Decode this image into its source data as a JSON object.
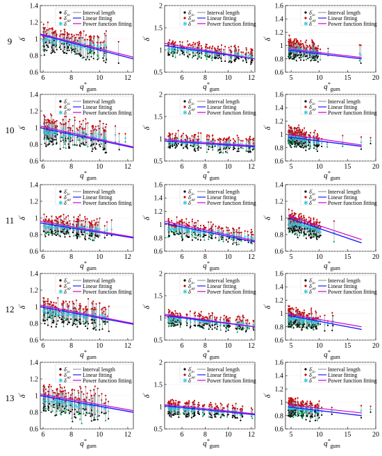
{
  "figure": {
    "row_labels": [
      "9",
      "10",
      "11",
      "12",
      "13"
    ],
    "legend": {
      "entries": [
        {
          "symbol_base": "δ",
          "sup": "′",
          "sub": "lo",
          "marker": "dot",
          "color": "#000000"
        },
        {
          "symbol_base": "δ",
          "sup": "′",
          "sub": "up",
          "marker": "dot",
          "color": "#cc0000"
        },
        {
          "symbol_base": "δ",
          "sup": "′",
          "sub": "",
          "marker": "star",
          "color": "#33ccdd"
        }
      ],
      "lines": [
        {
          "label": "Interval length",
          "color": "#9999aa"
        },
        {
          "label": "Linear fitting",
          "color": "#1a1aff"
        },
        {
          "label": "Power function fitting",
          "color": "#cc00cc"
        }
      ]
    },
    "axis_labels": {
      "x_base": "q",
      "x_sup": "*",
      "x_sub": "gum",
      "y_base": "δ",
      "y_sup": "′"
    },
    "colors": {
      "lo": "#000000",
      "up": "#cc0000",
      "mid": "#33ccdd",
      "green": "#00aa55",
      "interval": "#666677",
      "linear": "#1a1aff",
      "power": "#cc00cc",
      "pink": "#ff99cc"
    }
  },
  "chart_data": [
    {
      "type": "scatter",
      "row": "9",
      "col": 1,
      "xlim": [
        5.8,
        12.4
      ],
      "ylim": [
        0.6,
        1.4
      ],
      "xticks": [
        6,
        8,
        10,
        12
      ],
      "yticks": [
        0.6,
        0.8,
        1,
        1.2,
        1.4
      ],
      "cloud": {
        "x": [
          6,
          10.5
        ],
        "y_center": [
          1.0,
          0.87
        ],
        "spread": 0.09
      },
      "linear": {
        "x": [
          5.8,
          12.4
        ],
        "y": [
          1.05,
          0.76
        ]
      },
      "power": {
        "x": [
          5.8,
          12.4
        ],
        "y": [
          1.06,
          0.78
        ]
      }
    },
    {
      "type": "scatter",
      "row": "9",
      "col": 2,
      "xlim": [
        4.5,
        12.3
      ],
      "ylim": [
        0.5,
        2
      ],
      "xticks": [
        6,
        8,
        10,
        12
      ],
      "yticks": [
        0.5,
        1,
        1.5,
        2
      ],
      "cloud": {
        "x": [
          4.8,
          12.2
        ],
        "y_center": [
          1.05,
          0.85
        ],
        "spread": 0.1
      },
      "linear": {
        "x": [
          4.5,
          12.3
        ],
        "y": [
          1.1,
          0.8
        ]
      },
      "power": {
        "x": [
          4.5,
          12.3
        ],
        "y": [
          1.15,
          0.8
        ]
      }
    },
    {
      "type": "scatter",
      "row": "9",
      "col": 3,
      "xlim": [
        4,
        20
      ],
      "ylim": [
        0.6,
        1.6
      ],
      "xticks": [
        5,
        10,
        15,
        20
      ],
      "yticks": [
        0.6,
        0.8,
        1,
        1.2,
        1.4,
        1.6
      ],
      "cloud": {
        "x": [
          4.5,
          10
        ],
        "y_center": [
          0.95,
          0.88
        ],
        "spread": 0.08
      },
      "linear": {
        "x": [
          4.5,
          17.5
        ],
        "y": [
          0.93,
          0.8
        ]
      },
      "power": {
        "x": [
          4.5,
          17.5
        ],
        "y": [
          0.95,
          0.82
        ]
      }
    },
    {
      "type": "scatter",
      "row": "10",
      "col": 1,
      "xlim": [
        5.8,
        12.4
      ],
      "ylim": [
        0.6,
        1.4
      ],
      "xticks": [
        6,
        8,
        10,
        12
      ],
      "yticks": [
        0.6,
        0.8,
        1,
        1.2,
        1.4
      ],
      "cloud": {
        "x": [
          6,
          10.5
        ],
        "y_center": [
          0.97,
          0.86
        ],
        "spread": 0.1
      },
      "linear": {
        "x": [
          5.8,
          12.4
        ],
        "y": [
          1.0,
          0.76
        ]
      },
      "power": {
        "x": [
          5.8,
          12.4
        ],
        "y": [
          1.02,
          0.77
        ]
      }
    },
    {
      "type": "scatter",
      "row": "10",
      "col": 2,
      "xlim": [
        4.5,
        12.3
      ],
      "ylim": [
        0.5,
        2
      ],
      "xticks": [
        6,
        8,
        10,
        12
      ],
      "yticks": [
        0.5,
        1,
        1.5,
        2
      ],
      "cloud": {
        "x": [
          4.8,
          12.2
        ],
        "y_center": [
          0.95,
          0.85
        ],
        "spread": 0.1
      },
      "linear": {
        "x": [
          4.5,
          12.3
        ],
        "y": [
          0.95,
          0.82
        ]
      },
      "power": {
        "x": [
          4.5,
          12.3
        ],
        "y": [
          0.98,
          0.84
        ]
      }
    },
    {
      "type": "scatter",
      "row": "10",
      "col": 3,
      "xlim": [
        4,
        20
      ],
      "ylim": [
        0.6,
        1.6
      ],
      "xticks": [
        5,
        10,
        15,
        20
      ],
      "yticks": [
        0.6,
        0.8,
        1,
        1.2,
        1.4,
        1.6
      ],
      "cloud": {
        "x": [
          4.5,
          10
        ],
        "y_center": [
          0.97,
          0.88
        ],
        "spread": 0.08
      },
      "linear": {
        "x": [
          4.5,
          17.5
        ],
        "y": [
          0.96,
          0.82
        ]
      },
      "power": {
        "x": [
          4.5,
          17.5
        ],
        "y": [
          1.0,
          0.84
        ]
      }
    },
    {
      "type": "scatter",
      "row": "11",
      "col": 1,
      "xlim": [
        5.8,
        12.4
      ],
      "ylim": [
        0.6,
        1.4
      ],
      "xticks": [
        6,
        8,
        10,
        12
      ],
      "yticks": [
        0.6,
        0.8,
        1,
        1.2,
        1.4
      ],
      "cloud": {
        "x": [
          6,
          10.5
        ],
        "y_center": [
          0.9,
          0.85
        ],
        "spread": 0.07
      },
      "linear": {
        "x": [
          5.8,
          12.4
        ],
        "y": [
          0.94,
          0.76
        ]
      },
      "power": {
        "x": [
          5.8,
          12.4
        ],
        "y": [
          0.96,
          0.77
        ]
      }
    },
    {
      "type": "scatter",
      "row": "11",
      "col": 2,
      "xlim": [
        4.5,
        12.3
      ],
      "ylim": [
        0.6,
        1.6
      ],
      "xticks": [
        6,
        8,
        10,
        12
      ],
      "yticks": [
        0.6,
        0.8,
        1,
        1.2,
        1.4,
        1.6
      ],
      "cloud": {
        "x": [
          4.8,
          12.2
        ],
        "y_center": [
          0.95,
          0.8
        ],
        "spread": 0.08
      },
      "linear": {
        "x": [
          4.5,
          12.3
        ],
        "y": [
          1.02,
          0.74
        ]
      },
      "power": {
        "x": [
          4.5,
          12.3
        ],
        "y": [
          1.05,
          0.76
        ]
      }
    },
    {
      "type": "scatter",
      "row": "11",
      "col": 3,
      "xlim": [
        4,
        20
      ],
      "ylim": [
        0.6,
        1.4
      ],
      "xticks": [
        5,
        10,
        15,
        20
      ],
      "yticks": [
        0.6,
        0.8,
        1,
        1.2,
        1.4
      ],
      "cloud": {
        "x": [
          4.5,
          10
        ],
        "y_center": [
          0.95,
          0.85
        ],
        "spread": 0.07
      },
      "linear": {
        "x": [
          4.5,
          17.5
        ],
        "y": [
          1.0,
          0.7
        ]
      },
      "power": {
        "x": [
          4.5,
          17.5
        ],
        "y": [
          1.03,
          0.74
        ]
      }
    },
    {
      "type": "scatter",
      "row": "12",
      "col": 1,
      "xlim": [
        5.8,
        12.4
      ],
      "ylim": [
        0.6,
        1.4
      ],
      "xticks": [
        6,
        8,
        10,
        12
      ],
      "yticks": [
        0.6,
        0.8,
        1,
        1.2,
        1.4
      ],
      "cloud": {
        "x": [
          6,
          10.5
        ],
        "y_center": [
          0.95,
          0.86
        ],
        "spread": 0.09
      },
      "linear": {
        "x": [
          5.8,
          12.4
        ],
        "y": [
          1.0,
          0.79
        ]
      },
      "power": {
        "x": [
          5.8,
          12.4
        ],
        "y": [
          1.02,
          0.8
        ]
      }
    },
    {
      "type": "scatter",
      "row": "12",
      "col": 2,
      "xlim": [
        4.5,
        12.3
      ],
      "ylim": [
        0.5,
        2
      ],
      "xticks": [
        6,
        8,
        10,
        12
      ],
      "yticks": [
        0.5,
        1,
        1.5,
        2
      ],
      "cloud": {
        "x": [
          4.8,
          12.2
        ],
        "y_center": [
          0.98,
          0.84
        ],
        "spread": 0.1
      },
      "linear": {
        "x": [
          4.5,
          12.3
        ],
        "y": [
          1.05,
          0.8
        ]
      },
      "power": {
        "x": [
          4.5,
          12.3
        ],
        "y": [
          1.08,
          0.8
        ]
      }
    },
    {
      "type": "scatter",
      "row": "12",
      "col": 3,
      "xlim": [
        4,
        20
      ],
      "ylim": [
        0.6,
        1.6
      ],
      "xticks": [
        5,
        10,
        15,
        20
      ],
      "yticks": [
        0.6,
        0.8,
        1,
        1.2,
        1.4,
        1.6
      ],
      "cloud": {
        "x": [
          4.5,
          10
        ],
        "y_center": [
          0.93,
          0.86
        ],
        "spread": 0.08
      },
      "linear": {
        "x": [
          4.5,
          17.5
        ],
        "y": [
          0.97,
          0.76
        ]
      },
      "power": {
        "x": [
          4.5,
          17.5
        ],
        "y": [
          0.99,
          0.8
        ]
      }
    },
    {
      "type": "scatter",
      "row": "13",
      "col": 1,
      "xlim": [
        5.8,
        12.4
      ],
      "ylim": [
        0.6,
        1.4
      ],
      "xticks": [
        6,
        8,
        10,
        12
      ],
      "yticks": [
        0.6,
        0.8,
        1,
        1.2,
        1.4
      ],
      "cloud": {
        "x": [
          6,
          10.5
        ],
        "y_center": [
          0.95,
          0.85
        ],
        "spread": 0.1
      },
      "linear": {
        "x": [
          5.8,
          12.4
        ],
        "y": [
          1.0,
          0.8
        ]
      },
      "power": {
        "x": [
          5.8,
          12.4
        ],
        "y": [
          1.02,
          0.82
        ]
      }
    },
    {
      "type": "scatter",
      "row": "13",
      "col": 2,
      "xlim": [
        4.5,
        12.3
      ],
      "ylim": [
        0.5,
        2
      ],
      "xticks": [
        6,
        8,
        10,
        12
      ],
      "yticks": [
        0.5,
        1,
        1.5,
        2
      ],
      "cloud": {
        "x": [
          4.8,
          12.2
        ],
        "y_center": [
          0.97,
          0.85
        ],
        "spread": 0.1
      },
      "linear": {
        "x": [
          4.5,
          12.3
        ],
        "y": [
          1.02,
          0.82
        ]
      },
      "power": {
        "x": [
          4.5,
          12.3
        ],
        "y": [
          1.05,
          0.84
        ]
      }
    },
    {
      "type": "scatter",
      "row": "13",
      "col": 3,
      "xlim": [
        4,
        20
      ],
      "ylim": [
        0.6,
        1.6
      ],
      "xticks": [
        5,
        10,
        15,
        20
      ],
      "yticks": [
        0.6,
        0.8,
        1,
        1.2,
        1.4,
        1.6
      ],
      "cloud": {
        "x": [
          4.5,
          10
        ],
        "y_center": [
          0.92,
          0.87
        ],
        "spread": 0.08
      },
      "linear": {
        "x": [
          4.5,
          17.5
        ],
        "y": [
          0.93,
          0.8
        ]
      },
      "power": {
        "x": [
          4.5,
          17.5
        ],
        "y": [
          0.96,
          0.84
        ]
      }
    }
  ]
}
